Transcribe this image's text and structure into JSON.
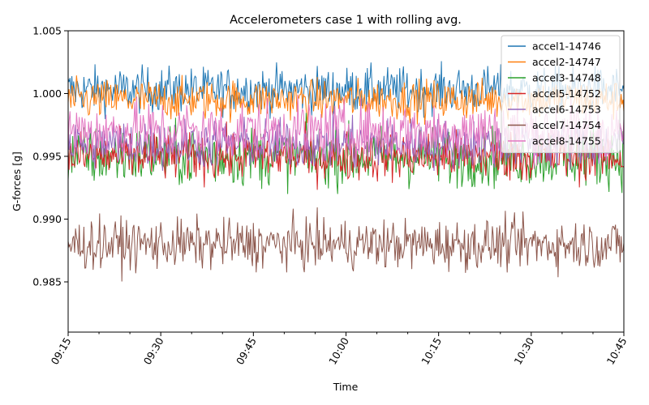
{
  "chart_data": {
    "type": "line",
    "title": "Accelerometers case 1 with rolling avg.",
    "xlabel": "Time",
    "ylabel": "G-forces [g]",
    "xlim": [
      "09:15",
      "10:45"
    ],
    "ylim": [
      0.981,
      1.005
    ],
    "x_ticks": [
      "09:15",
      "09:30",
      "09:45",
      "10:00",
      "10:15",
      "10:30",
      "10:45"
    ],
    "y_ticks": [
      "0.985",
      "0.990",
      "0.995",
      "1.000",
      "1.005"
    ],
    "legend_position": "top-right",
    "grid": false,
    "series": [
      {
        "name": "accel1-14746",
        "color": "#1f77b4",
        "mean": 1.0003,
        "spread": 0.0009,
        "min": 0.9975,
        "max": 1.004
      },
      {
        "name": "accel2-14747",
        "color": "#ff7f0e",
        "mean": 0.9995,
        "spread": 0.0008,
        "min": 0.997,
        "max": 1.0025
      },
      {
        "name": "accel3-14748",
        "color": "#2ca02c",
        "mean": 0.995,
        "spread": 0.0012,
        "min": 0.992,
        "max": 0.9985
      },
      {
        "name": "accel5-14752",
        "color": "#d62728",
        "mean": 0.995,
        "spread": 0.001,
        "min": 0.9918,
        "max": 0.999
      },
      {
        "name": "accel6-14753",
        "color": "#9467bd",
        "mean": 0.996,
        "spread": 0.001,
        "min": 0.993,
        "max": 0.9995
      },
      {
        "name": "accel7-14754",
        "color": "#8c564b",
        "mean": 0.988,
        "spread": 0.001,
        "min": 0.9822,
        "max": 0.9913
      },
      {
        "name": "accel8-14755",
        "color": "#e377c2",
        "mean": 0.997,
        "spread": 0.0012,
        "min": 0.994,
        "max": 1.0
      }
    ]
  }
}
